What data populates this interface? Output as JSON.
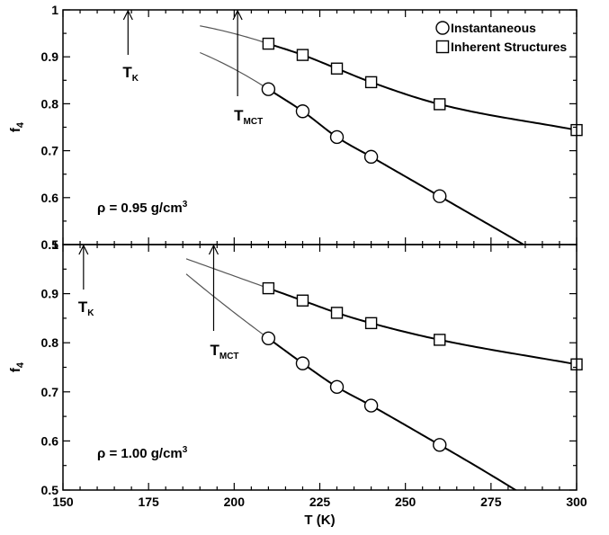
{
  "chart_data": [
    {
      "type": "line",
      "xlim": [
        150,
        300
      ],
      "ylim": [
        0.5,
        1.0
      ],
      "xticks": [
        150,
        175,
        200,
        225,
        250,
        275,
        300
      ],
      "yticks": [
        0.5,
        0.6,
        0.7,
        0.8,
        0.9,
        1.0
      ],
      "ytick_labels": [
        "0.5",
        "0.6",
        "0.7",
        "0.8",
        "0.9",
        "1"
      ],
      "ylabel": "f",
      "ylabel_sub": "4",
      "annotation": {
        "prefix": "ρ = 0.95 g/cm",
        "sup": "3"
      },
      "markers": [
        {
          "label": "T",
          "sub": "K",
          "x": 169
        },
        {
          "label": "T",
          "sub": "MCT",
          "x": 201
        }
      ],
      "legend": {
        "position": "top-right"
      },
      "series": [
        {
          "name": "Instantaneous",
          "marker": "circle",
          "x": [
            210,
            220,
            230,
            240,
            260
          ],
          "y": [
            0.831,
            0.784,
            0.729,
            0.687,
            0.603
          ],
          "fit": {
            "x0": 190,
            "x1": 290
          },
          "fit_solid_from": 210
        },
        {
          "name": "Inherent Structures",
          "marker": "square",
          "x": [
            210,
            220,
            230,
            240,
            260,
            300
          ],
          "y": [
            0.928,
            0.904,
            0.875,
            0.846,
            0.799,
            0.744
          ],
          "fit": {
            "x0": 190,
            "x1": 300
          },
          "fit_solid_from": 210
        }
      ]
    },
    {
      "type": "line",
      "xlim": [
        150,
        300
      ],
      "ylim": [
        0.5,
        1.0
      ],
      "xticks": [
        150,
        175,
        200,
        225,
        250,
        275,
        300
      ],
      "yticks": [
        0.5,
        0.6,
        0.7,
        0.8,
        0.9,
        1.0
      ],
      "ytick_labels": [
        "0.5",
        "0.6",
        "0.7",
        "0.8",
        "0.9",
        "1"
      ],
      "xlabel": "T (K)",
      "ylabel": "f",
      "ylabel_sub": "4",
      "annotation": {
        "prefix": "ρ = 1.00 g/cm",
        "sup": "3"
      },
      "markers": [
        {
          "label": "T",
          "sub": "K",
          "x": 156
        },
        {
          "label": "T",
          "sub": "MCT",
          "x": 194
        }
      ],
      "series": [
        {
          "name": "Instantaneous",
          "marker": "circle",
          "x": [
            210,
            220,
            230,
            240,
            260
          ],
          "y": [
            0.809,
            0.758,
            0.71,
            0.672,
            0.592
          ],
          "fit": {
            "x0": 186,
            "x1": 292
          },
          "fit_solid_from": 210
        },
        {
          "name": "Inherent Structures",
          "marker": "square",
          "x": [
            210,
            220,
            230,
            240,
            260,
            300
          ],
          "y": [
            0.911,
            0.886,
            0.861,
            0.84,
            0.806,
            0.756
          ],
          "fit": {
            "x0": 186,
            "x1": 300
          },
          "fit_solid_from": 210
        }
      ]
    }
  ]
}
